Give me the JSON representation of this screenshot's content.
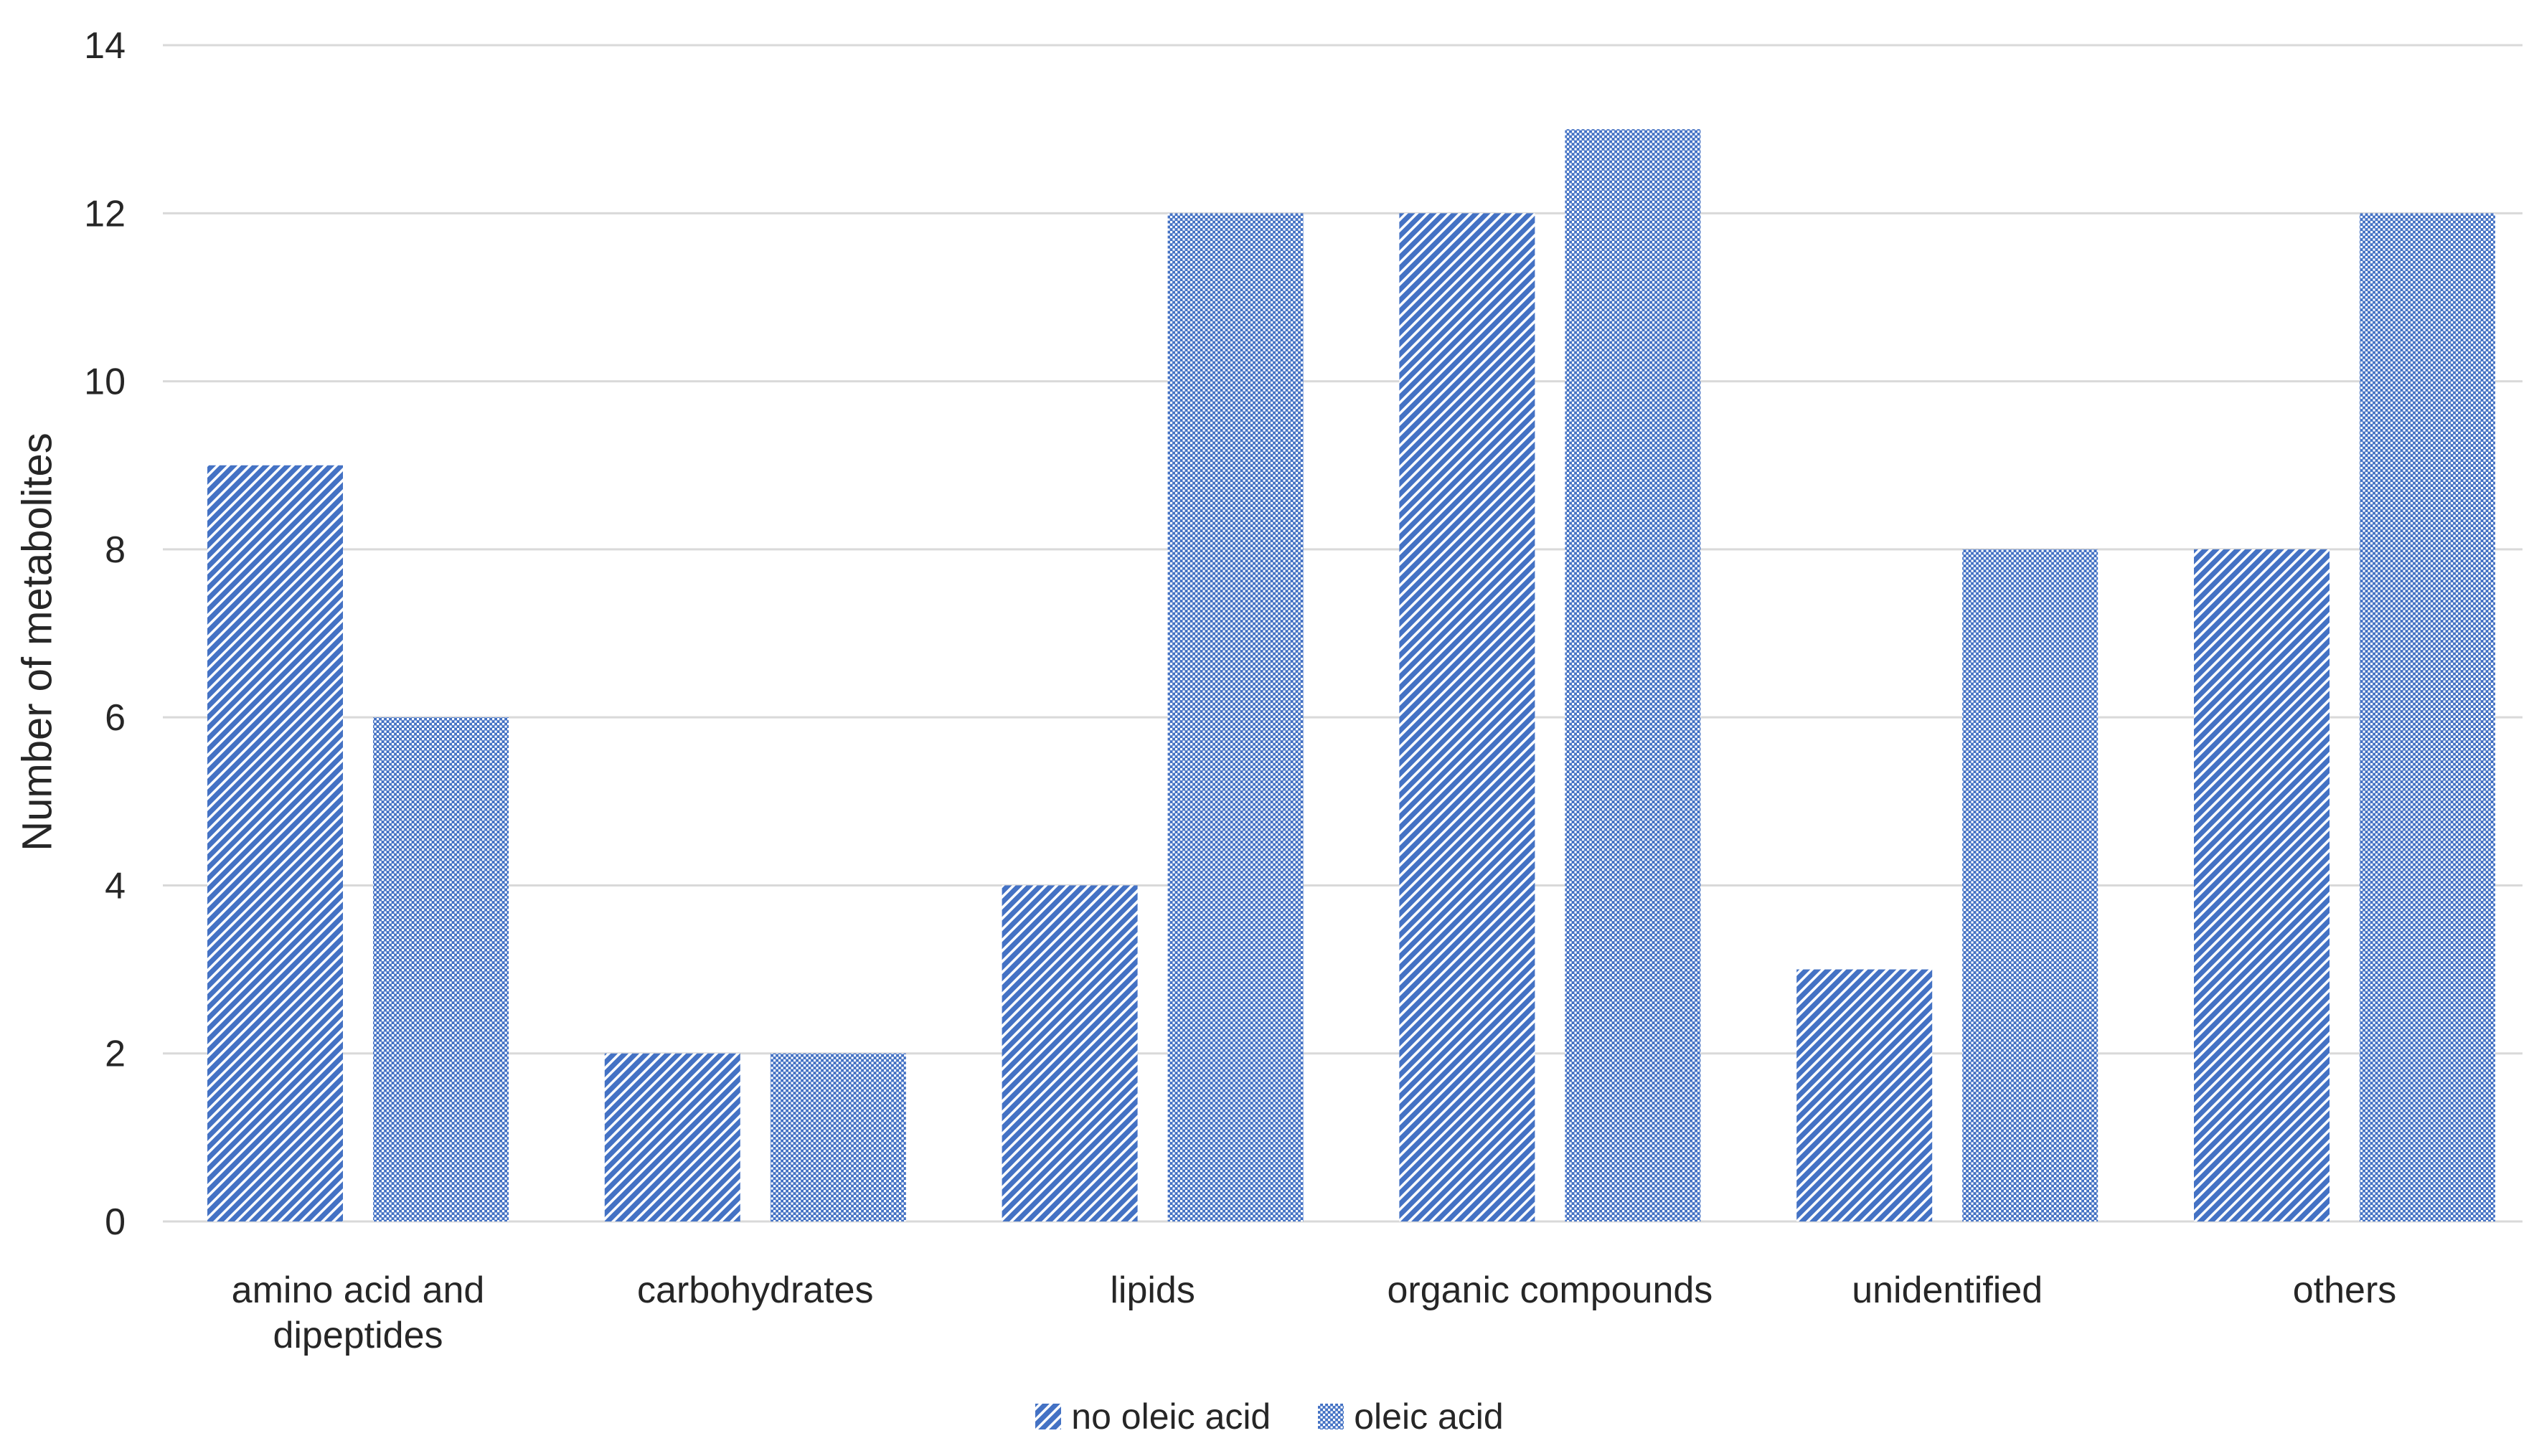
{
  "chart_data": {
    "type": "bar",
    "title": "",
    "ylabel": "Number of metabolites",
    "xlabel": "",
    "categories": [
      "amino acid and dipeptides",
      "carbohydrates",
      "lipids",
      "organic compounds",
      "unidentified",
      "others"
    ],
    "series": [
      {
        "name": "no oleic acid",
        "pattern": "diagonal-stripes",
        "values": [
          9,
          2,
          4,
          12,
          3,
          8
        ]
      },
      {
        "name": "oleic acid",
        "pattern": "dotted-grid",
        "values": [
          6,
          2,
          12,
          13,
          8,
          12
        ]
      }
    ],
    "ylim": [
      0,
      14
    ],
    "yticks": [
      0,
      2,
      4,
      6,
      8,
      10,
      12,
      14
    ],
    "grid": "horizontal",
    "legend_position": "bottom",
    "colors": {
      "bar_blue": "#4472C4",
      "gridline": "#D9D9D9",
      "text": "#262626",
      "background": "#FFFFFF"
    }
  }
}
